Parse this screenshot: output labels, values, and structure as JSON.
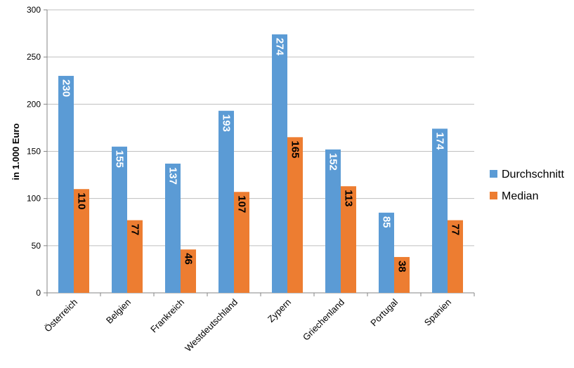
{
  "chart_data": {
    "type": "bar",
    "title": "",
    "xlabel": "",
    "ylabel": "in 1.000 Euro",
    "ylim": [
      0,
      300
    ],
    "yticks": [
      0,
      50,
      100,
      150,
      200,
      250,
      300
    ],
    "grid": true,
    "legend_position": "right",
    "categories": [
      "Österreich",
      "Belgien",
      "Frankreich",
      "Westdeutschland",
      "Zypern",
      "Griechenland",
      "Portugal",
      "Spanien"
    ],
    "series": [
      {
        "name": "Durchschnitt",
        "color": "#5B9BD5",
        "label_color": "#FFFFFF",
        "values": [
          230,
          155,
          137,
          193,
          274,
          152,
          85,
          174
        ]
      },
      {
        "name": "Median",
        "color": "#ED7D31",
        "label_color": "#000000",
        "values": [
          110,
          77,
          46,
          107,
          165,
          113,
          38,
          77
        ]
      }
    ]
  }
}
